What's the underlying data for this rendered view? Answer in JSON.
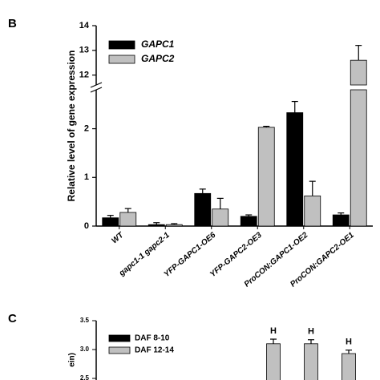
{
  "chart_data": [
    {
      "type": "bar",
      "panel": "B",
      "y_label": "Relative level of gene expression",
      "categories": [
        "WT",
        "gapc1-1 gapc2-1",
        "YFP-GAPC1-OE6",
        "YFP-GAPC2-OE3",
        "ProCON:GAPC1-OE2",
        "ProCON:GAPC2-OE1"
      ],
      "series": [
        {
          "name": "GAPC1",
          "color": "#000000",
          "values": [
            0.17,
            0.03,
            0.67,
            0.2,
            2.33,
            0.23
          ],
          "errors": [
            0.05,
            0.04,
            0.09,
            0.03,
            0.23,
            0.04
          ]
        },
        {
          "name": "GAPC2",
          "color": "#c0c0c0",
          "values": [
            0.28,
            0.03,
            0.35,
            2.03,
            0.62,
            12.6
          ],
          "errors": [
            0.08,
            0.02,
            0.22,
            0.02,
            0.3,
            0.6
          ]
        }
      ],
      "ylim": [
        0,
        14
      ],
      "axis_break": [
        2.8,
        11.6
      ],
      "yticks": [
        0,
        1,
        2,
        12,
        13,
        14
      ],
      "legend": "top-left"
    },
    {
      "type": "bar",
      "panel": "C",
      "y_label": "ein)",
      "categories": [
        null,
        null,
        null,
        null,
        null,
        null,
        null
      ],
      "series": [
        {
          "name": "DAF 8-10",
          "color": "#000000",
          "values": [
            null,
            null,
            null,
            null,
            null,
            null,
            null
          ],
          "errors": [
            null,
            null,
            null,
            null,
            null,
            null,
            null
          ]
        },
        {
          "name": "DAF 12-14",
          "color": "#c0c0c0",
          "values": [
            null,
            null,
            null,
            null,
            3.1,
            3.1,
            2.93
          ],
          "errors": [
            null,
            null,
            null,
            null,
            0.08,
            0.07,
            0.06
          ],
          "bar_labels": [
            null,
            null,
            null,
            null,
            "H",
            "H",
            "H"
          ]
        }
      ],
      "ylim": [
        2.5,
        3.5
      ],
      "yticks": [
        2.5,
        {
          "value": 3.0,
          "label": "3.0"
        },
        3.5
      ],
      "legend": "top-left"
    }
  ]
}
